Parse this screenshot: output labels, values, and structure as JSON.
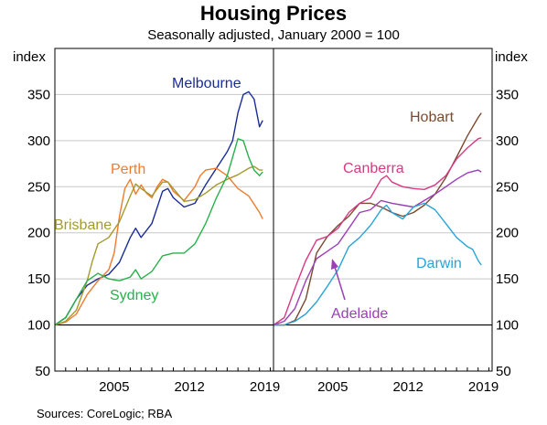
{
  "chart_data": {
    "type": "line",
    "title": "Housing Prices",
    "subtitle": "Seasonally adjusted, January 2000 = 100",
    "unit_left": "index",
    "unit_right": "index",
    "ylim": [
      50,
      400
    ],
    "yticks": [
      50,
      100,
      150,
      200,
      250,
      300,
      350
    ],
    "xlim": [
      2000,
      2020.3
    ],
    "xticks": [
      2005,
      2012,
      2019
    ],
    "source": "Sources:   CoreLogic; RBA",
    "panels": [
      {
        "id": "left",
        "series": [
          {
            "name": "Melbourne",
            "color": "#1a2c96",
            "x": [
              2000,
              2001,
              2002,
              2003,
              2004,
              2005,
              2006,
              2007,
              2007.5,
              2008,
              2009,
              2010,
              2010.5,
              2011,
              2012,
              2013,
              2014,
              2015,
              2016,
              2016.5,
              2017,
              2017.5,
              2018,
              2018.5,
              2019,
              2019.3
            ],
            "y": [
              100,
              108,
              128,
              143,
              150,
              155,
              168,
              195,
              205,
              195,
              210,
              245,
              248,
              238,
              228,
              232,
              252,
              270,
              288,
              300,
              330,
              350,
              353,
              345,
              315,
              322
            ]
          },
          {
            "name": "Perth",
            "color": "#f07a2e",
            "x": [
              2000,
              2001,
              2002,
              2003,
              2004,
              2005,
              2005.5,
              2006,
              2006.5,
              2007,
              2007.5,
              2008,
              2008.5,
              2009,
              2009.5,
              2010,
              2010.5,
              2011,
              2012,
              2013,
              2013.5,
              2014,
              2015,
              2016,
              2017,
              2018,
              2019,
              2019.3
            ],
            "y": [
              100,
              103,
              112,
              133,
              148,
              160,
              178,
              218,
              248,
              258,
              242,
              252,
              243,
              238,
              250,
              258,
              255,
              245,
              235,
              250,
              262,
              268,
              270,
              262,
              248,
              240,
              222,
              215
            ]
          },
          {
            "name": "Brisbane",
            "color": "#a39a2e",
            "x": [
              2000,
              2001,
              2002,
              2003,
              2003.5,
              2004,
              2005,
              2006,
              2007,
              2007.5,
              2008,
              2009,
              2010,
              2010.5,
              2011,
              2012,
              2013,
              2014,
              2015,
              2016,
              2017,
              2018,
              2018.5,
              2019,
              2019.3
            ],
            "y": [
              100,
              104,
              116,
              148,
              170,
              188,
              195,
              212,
              240,
              253,
              248,
              240,
              255,
              255,
              248,
              234,
              236,
              243,
              252,
              258,
              263,
              270,
              272,
              268,
              268
            ]
          },
          {
            "name": "Sydney",
            "color": "#2ab04b",
            "x": [
              2000,
              2001,
              2002,
              2003,
              2004,
              2005,
              2006,
              2007,
              2007.5,
              2008,
              2009,
              2010,
              2011,
              2012,
              2013,
              2014,
              2015,
              2016,
              2016.5,
              2017,
              2017.5,
              2018,
              2018.5,
              2019,
              2019.3
            ],
            "y": [
              100,
              108,
              128,
              148,
              156,
              150,
              148,
              152,
              160,
              150,
              158,
              175,
              178,
              178,
              188,
              210,
              238,
              262,
              282,
              302,
              300,
              282,
              268,
              262,
              266
            ]
          }
        ]
      },
      {
        "id": "right",
        "series": [
          {
            "name": "Hobart",
            "color": "#7a4a30",
            "x": [
              2000,
              2001,
              2002,
              2003,
              2004,
              2005,
              2006,
              2007,
              2008,
              2009,
              2010,
              2011,
              2012,
              2013,
              2014,
              2015,
              2016,
              2017,
              2018,
              2019,
              2019.3
            ],
            "y": [
              100,
              100,
              105,
              128,
              178,
              196,
              208,
              218,
              232,
              232,
              228,
              222,
              218,
              222,
              230,
              242,
              260,
              282,
              305,
              325,
              330
            ]
          },
          {
            "name": "Canberra",
            "color": "#d63a83",
            "x": [
              2000,
              2001,
              2002,
              2003,
              2004,
              2005,
              2006,
              2007,
              2008,
              2009,
              2010,
              2010.5,
              2011,
              2012,
              2013,
              2014,
              2015,
              2016,
              2017,
              2018,
              2019,
              2019.3
            ],
            "y": [
              100,
              108,
              140,
              170,
              192,
              196,
              205,
              222,
              232,
              238,
              258,
              262,
              255,
              250,
              248,
              247,
              252,
              262,
              280,
              292,
              302,
              303
            ]
          },
          {
            "name": "Adelaide",
            "color": "#9b3fb5",
            "x": [
              2000,
              2001,
              2002,
              2003,
              2004,
              2005,
              2006,
              2007,
              2008,
              2009,
              2010,
              2011,
              2012,
              2013,
              2014,
              2015,
              2016,
              2017,
              2018,
              2019,
              2019.3
            ],
            "y": [
              100,
              104,
              118,
              148,
              172,
              180,
              188,
              205,
              222,
              225,
              235,
              232,
              230,
              228,
              235,
              242,
              250,
              258,
              265,
              268,
              266
            ]
          },
          {
            "name": "Darwin",
            "color": "#2aa4d6",
            "x": [
              2000,
              2001,
              2002,
              2003,
              2004,
              2005,
              2006,
              2007,
              2008,
              2009,
              2010,
              2010.5,
              2011,
              2012,
              2013,
              2014,
              2015,
              2016,
              2017,
              2018,
              2018.5,
              2019,
              2019.3
            ],
            "y": [
              100,
              100,
              104,
              112,
              125,
              142,
              160,
              185,
              195,
              208,
              225,
              230,
              222,
              215,
              228,
              232,
              225,
              210,
              195,
              185,
              182,
              170,
              165
            ]
          }
        ]
      }
    ]
  }
}
